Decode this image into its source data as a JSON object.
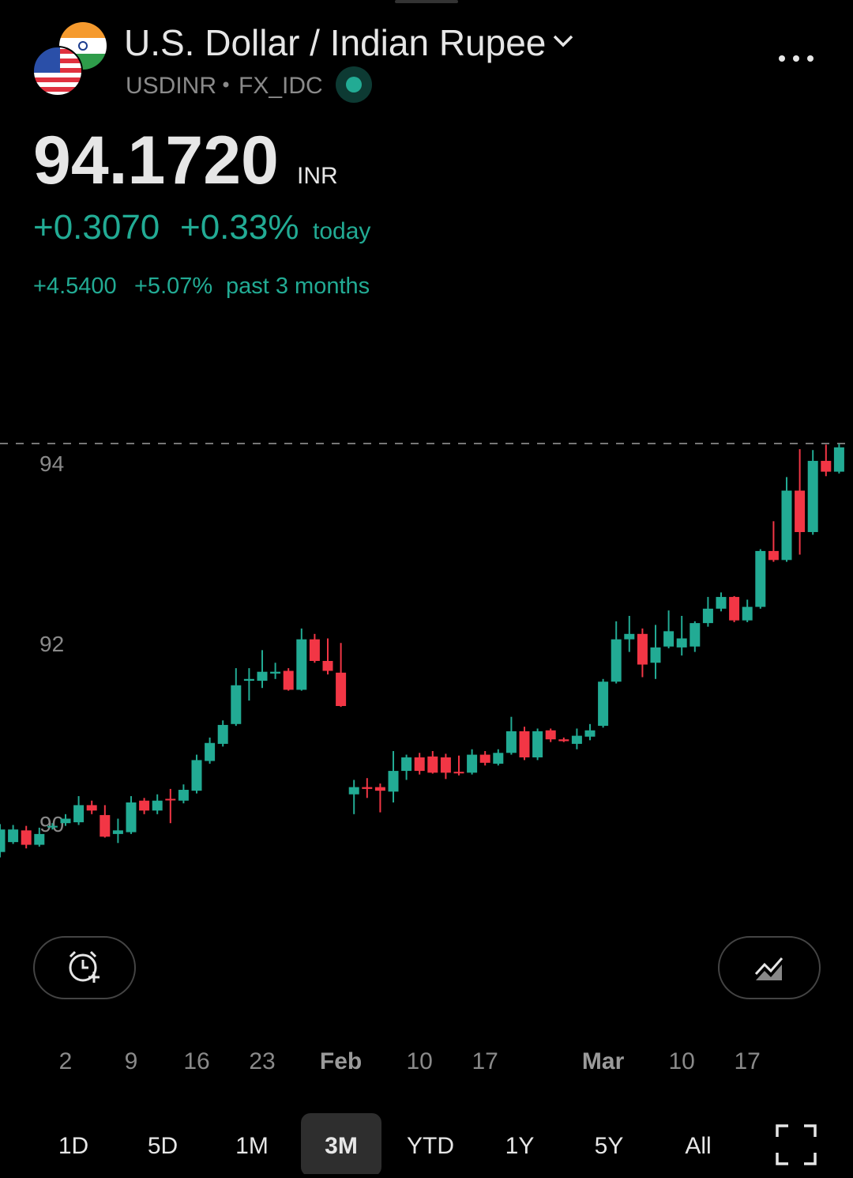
{
  "header": {
    "title": "U.S. Dollar / Indian Rupee",
    "symbol": "USDINR",
    "exchange": "FX_IDC",
    "price": "94.1720",
    "currency": "INR",
    "change": "+0.3070",
    "change_percent": "+0.33%",
    "change_period": "today",
    "period_change": "+4.5400",
    "period_change_percent": "+5.07%",
    "period_label": "past 3 months"
  },
  "chart_data": {
    "type": "candlestick",
    "up_color": "#22ab94",
    "down_color": "#f23645",
    "categories": [
      null,
      null,
      null,
      null,
      null,
      "2",
      null,
      null,
      null,
      null,
      "9",
      null,
      null,
      null,
      null,
      "16",
      null,
      null,
      null,
      null,
      "23",
      null,
      null,
      null,
      null,
      null,
      "Feb",
      null,
      null,
      null,
      null,
      null,
      "10",
      null,
      null,
      null,
      null,
      "17",
      null,
      null,
      null,
      null,
      null,
      null,
      null,
      null,
      "Mar",
      null,
      null,
      null,
      null,
      null,
      "10",
      null,
      null,
      null,
      null,
      "17",
      null,
      null,
      null,
      null,
      null,
      null,
      null
    ],
    "open": [
      89.68,
      89.79,
      89.92,
      89.76,
      89.96,
      90.0,
      90.01,
      90.2,
      90.09,
      89.88,
      89.9,
      90.25,
      90.14,
      90.27,
      90.25,
      90.36,
      90.69,
      90.88,
      91.1,
      91.58,
      91.58,
      91.66,
      91.69,
      91.48,
      92.04,
      91.8,
      91.67,
      90.32,
      90.4,
      90.4,
      90.35,
      90.58,
      90.73,
      90.74,
      90.73,
      90.57,
      90.56,
      90.76,
      90.66,
      90.78,
      91.02,
      90.73,
      91.03,
      90.93,
      90.88,
      90.96,
      91.08,
      91.57,
      92.04,
      92.1,
      91.78,
      91.96,
      91.95,
      91.96,
      92.22,
      92.38,
      92.51,
      92.25,
      92.4,
      93.02,
      92.92,
      93.69,
      93.23,
      94.02,
      93.9
    ],
    "high": [
      89.99,
      89.98,
      89.97,
      89.95,
      90.0,
      90.1,
      90.3,
      90.25,
      90.2,
      90.05,
      90.3,
      90.28,
      90.32,
      90.38,
      90.43,
      90.76,
      90.95,
      91.14,
      91.72,
      91.72,
      91.92,
      91.78,
      91.72,
      92.16,
      92.1,
      92.05,
      92.0,
      90.48,
      90.5,
      90.44,
      90.8,
      90.76,
      90.78,
      90.8,
      90.77,
      90.75,
      90.82,
      90.8,
      90.82,
      91.18,
      91.07,
      91.05,
      91.05,
      90.95,
      91.05,
      91.1,
      91.6,
      92.24,
      92.3,
      92.16,
      92.2,
      92.36,
      92.3,
      92.24,
      92.51,
      92.56,
      92.52,
      92.48,
      93.04,
      93.35,
      93.84,
      94.15,
      94.14,
      94.2,
      94.21
    ],
    "low": [
      89.62,
      89.77,
      89.72,
      89.74,
      89.93,
      89.97,
      89.98,
      90.1,
      89.84,
      89.78,
      89.88,
      90.1,
      90.1,
      90.0,
      90.22,
      90.33,
      90.66,
      90.85,
      91.08,
      91.36,
      91.5,
      91.6,
      91.47,
      91.47,
      91.78,
      91.65,
      91.29,
      90.1,
      90.28,
      90.12,
      90.23,
      90.48,
      90.54,
      90.55,
      90.49,
      90.53,
      90.54,
      90.64,
      90.64,
      90.76,
      90.7,
      90.7,
      90.9,
      90.9,
      90.82,
      90.92,
      91.06,
      91.55,
      91.9,
      91.62,
      91.6,
      91.94,
      91.86,
      91.9,
      92.18,
      92.35,
      92.23,
      92.23,
      92.38,
      92.9,
      92.9,
      92.98,
      93.2,
      93.85,
      93.88
    ],
    "close": [
      89.93,
      89.93,
      89.76,
      89.88,
      89.97,
      90.05,
      90.2,
      90.14,
      89.85,
      89.92,
      90.23,
      90.14,
      90.25,
      90.26,
      90.37,
      90.7,
      90.89,
      91.09,
      91.53,
      91.6,
      91.68,
      91.68,
      91.48,
      92.04,
      91.8,
      91.69,
      91.3,
      90.4,
      90.38,
      90.36,
      90.58,
      90.73,
      90.58,
      90.56,
      90.56,
      90.56,
      90.76,
      90.67,
      90.78,
      91.02,
      90.73,
      91.02,
      90.93,
      90.91,
      90.97,
      91.03,
      91.57,
      92.04,
      92.1,
      91.76,
      91.95,
      92.13,
      92.05,
      92.22,
      92.38,
      92.51,
      92.25,
      92.4,
      93.02,
      92.92,
      93.69,
      93.23,
      94.02,
      93.9,
      94.17
    ],
    "ylim": [
      89.3,
      95.3
    ],
    "yticks": [
      90,
      92,
      94
    ]
  },
  "ranges": {
    "options": [
      "1D",
      "5D",
      "1M",
      "3M",
      "YTD",
      "1Y",
      "5Y",
      "All"
    ],
    "selected": 3
  }
}
